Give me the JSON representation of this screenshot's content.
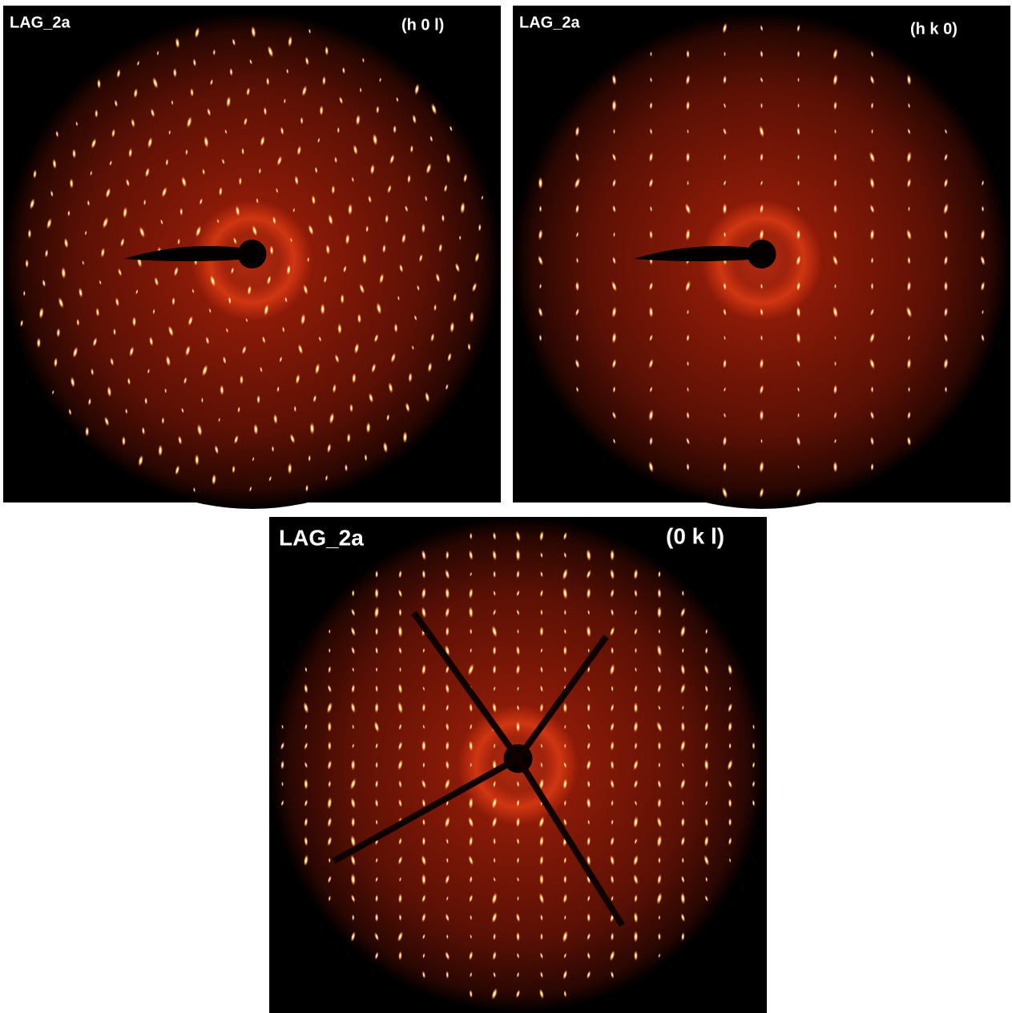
{
  "panels": [
    {
      "sample": "LAG_2a",
      "plane": "(h 0 l)"
    },
    {
      "sample": "LAG_2a",
      "plane": "(h k 0)"
    },
    {
      "sample": "LAG_2a",
      "plane": "(0 k l)"
    }
  ]
}
